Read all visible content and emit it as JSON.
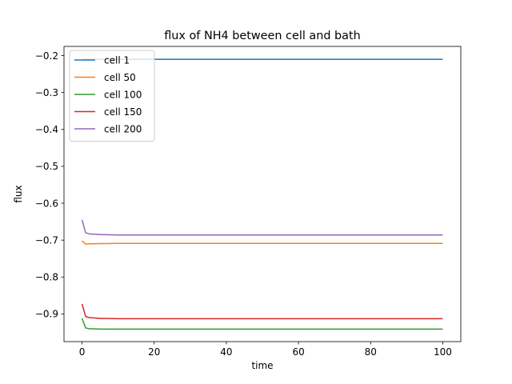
{
  "chart_data": {
    "type": "line",
    "title": "flux of NH4 between cell and bath",
    "xlabel": "time",
    "ylabel": "flux",
    "xlim": [
      -5,
      105
    ],
    "ylim": [
      -0.975,
      -0.175
    ],
    "xticks": [
      0,
      20,
      40,
      60,
      80,
      100
    ],
    "xtick_labels": [
      "0",
      "20",
      "40",
      "60",
      "80",
      "100"
    ],
    "yticks": [
      -0.9,
      -0.8,
      -0.7,
      -0.6,
      -0.5,
      -0.4,
      -0.3,
      -0.2
    ],
    "ytick_labels": [
      "−0.9",
      "−0.8",
      "−0.7",
      "−0.6",
      "−0.5",
      "−0.4",
      "−0.3",
      "−0.2"
    ],
    "grid": false,
    "legend_position": "top-left",
    "series": [
      {
        "name": "cell 1",
        "color": "#1f77b4",
        "points": [
          [
            0,
            -0.21
          ],
          [
            1,
            -0.21
          ],
          [
            2,
            -0.21
          ],
          [
            5,
            -0.21
          ],
          [
            10,
            -0.21
          ],
          [
            20,
            -0.21
          ],
          [
            40,
            -0.21
          ],
          [
            60,
            -0.21
          ],
          [
            80,
            -0.21
          ],
          [
            100,
            -0.21
          ]
        ]
      },
      {
        "name": "cell 50",
        "color": "#ff7f0e",
        "points": [
          [
            0,
            -0.702
          ],
          [
            1,
            -0.711
          ],
          [
            2,
            -0.71
          ],
          [
            5,
            -0.7095
          ],
          [
            10,
            -0.709
          ],
          [
            20,
            -0.709
          ],
          [
            40,
            -0.709
          ],
          [
            60,
            -0.709
          ],
          [
            80,
            -0.709
          ],
          [
            100,
            -0.709
          ]
        ]
      },
      {
        "name": "cell 100",
        "color": "#2ca02c",
        "points": [
          [
            0,
            -0.912
          ],
          [
            1,
            -0.938
          ],
          [
            2,
            -0.94
          ],
          [
            5,
            -0.941
          ],
          [
            10,
            -0.941
          ],
          [
            20,
            -0.941
          ],
          [
            40,
            -0.941
          ],
          [
            60,
            -0.941
          ],
          [
            80,
            -0.941
          ],
          [
            100,
            -0.941
          ]
        ]
      },
      {
        "name": "cell 150",
        "color": "#d62728",
        "points": [
          [
            0,
            -0.873
          ],
          [
            1,
            -0.907
          ],
          [
            2,
            -0.91
          ],
          [
            5,
            -0.912
          ],
          [
            10,
            -0.913
          ],
          [
            20,
            -0.913
          ],
          [
            40,
            -0.913
          ],
          [
            60,
            -0.913
          ],
          [
            80,
            -0.913
          ],
          [
            100,
            -0.913
          ]
        ]
      },
      {
        "name": "cell 200",
        "color": "#9467bd",
        "points": [
          [
            0,
            -0.645
          ],
          [
            1,
            -0.68
          ],
          [
            2,
            -0.683
          ],
          [
            5,
            -0.685
          ],
          [
            10,
            -0.686
          ],
          [
            20,
            -0.686
          ],
          [
            40,
            -0.686
          ],
          [
            60,
            -0.686
          ],
          [
            80,
            -0.686
          ],
          [
            100,
            -0.686
          ]
        ]
      }
    ]
  }
}
